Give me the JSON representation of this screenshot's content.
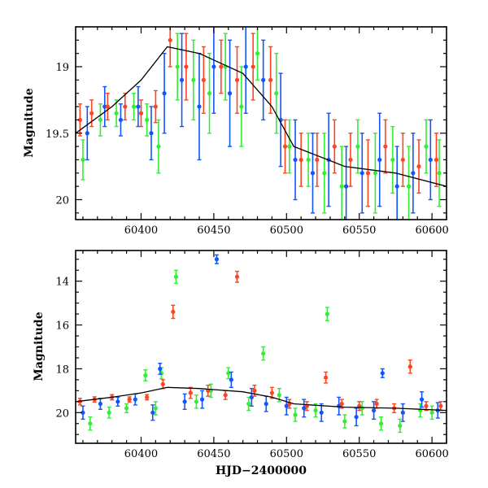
{
  "chart_data": [
    {
      "type": "scatter",
      "panel": "top",
      "title": "",
      "xlabel": "",
      "ylabel": "Magnitude",
      "xlim": [
        60355,
        60610
      ],
      "ylim": [
        20.15,
        18.7
      ],
      "y_inverted": true,
      "xticks": [
        60400,
        60450,
        60500,
        60550,
        60600
      ],
      "xtick_labels": [
        "60400",
        "60450",
        "60500",
        "60550",
        "60600"
      ],
      "yticks": [
        19,
        19.5,
        20
      ],
      "ytick_labels": [
        "19",
        "19.5",
        "20"
      ],
      "grid": false,
      "legend": "none",
      "series": [
        {
          "color": "#33ee33",
          "marker": "point-with-errorbar",
          "x": [
            60360,
            60372,
            60383,
            60395,
            60404,
            60412,
            60425,
            60436,
            60447,
            60458,
            60469,
            60480,
            60493,
            60502,
            60515,
            60526,
            60538,
            60549,
            60561,
            60573,
            60584,
            60596,
            60605
          ],
          "y": [
            19.7,
            19.4,
            19.35,
            19.3,
            19.4,
            19.6,
            19.0,
            19.1,
            19.2,
            19.0,
            19.3,
            18.9,
            19.2,
            19.6,
            19.7,
            19.8,
            19.9,
            19.6,
            19.8,
            19.7,
            19.9,
            19.6,
            19.8
          ],
          "err": [
            0.15,
            0.12,
            0.1,
            0.1,
            0.12,
            0.2,
            0.25,
            0.3,
            0.3,
            0.25,
            0.3,
            0.2,
            0.3,
            0.2,
            0.2,
            0.3,
            0.3,
            0.2,
            0.3,
            0.25,
            0.3,
            0.2,
            0.25
          ]
        },
        {
          "color": "#1155ff",
          "marker": "point-with-errorbar",
          "x": [
            60363,
            60375,
            60386,
            60398,
            60407,
            60416,
            60428,
            60440,
            60450,
            60461,
            60472,
            60484,
            60496,
            60506,
            60518,
            60529,
            60541,
            60552,
            60564,
            60576,
            60587,
            60599
          ],
          "y": [
            19.5,
            19.3,
            19.4,
            19.3,
            19.5,
            19.2,
            19.1,
            19.3,
            19.0,
            19.2,
            19.0,
            19.1,
            19.4,
            19.7,
            19.8,
            19.7,
            19.9,
            19.8,
            19.7,
            19.9,
            19.8,
            19.7
          ],
          "err": [
            0.2,
            0.15,
            0.12,
            0.15,
            0.2,
            0.3,
            0.35,
            0.4,
            0.35,
            0.4,
            0.35,
            0.3,
            0.35,
            0.3,
            0.3,
            0.35,
            0.3,
            0.3,
            0.35,
            0.3,
            0.3,
            0.3
          ]
        },
        {
          "color": "#ff4422",
          "marker": "point-with-errorbar",
          "x": [
            60358,
            60366,
            60377,
            60389,
            60400,
            60410,
            60420,
            60431,
            60443,
            60455,
            60466,
            60477,
            60489,
            60499,
            60510,
            60521,
            60533,
            60544,
            60556,
            60568,
            60580,
            60591,
            60603
          ],
          "y": [
            19.4,
            19.35,
            19.3,
            19.3,
            19.35,
            19.3,
            18.8,
            19.0,
            19.1,
            19.0,
            19.1,
            19.0,
            19.1,
            19.6,
            19.7,
            19.7,
            19.6,
            19.7,
            19.8,
            19.6,
            19.7,
            19.75,
            19.7
          ],
          "err": [
            0.12,
            0.1,
            0.1,
            0.1,
            0.1,
            0.12,
            0.2,
            0.25,
            0.25,
            0.2,
            0.25,
            0.25,
            0.25,
            0.2,
            0.2,
            0.2,
            0.2,
            0.2,
            0.25,
            0.2,
            0.2,
            0.2,
            0.2
          ]
        }
      ],
      "model_curve": {
        "color": "#000000",
        "x": [
          60355,
          60380,
          60400,
          60418,
          60440,
          60470,
          60490,
          60505,
          60540,
          60575,
          60610
        ],
        "y": [
          19.5,
          19.3,
          19.1,
          18.85,
          18.9,
          19.05,
          19.3,
          19.6,
          19.75,
          19.8,
          19.9
        ]
      }
    },
    {
      "type": "scatter",
      "panel": "bottom",
      "title": "",
      "xlabel": "HJD−2400000",
      "ylabel": "Magnitude",
      "xlim": [
        60355,
        60610
      ],
      "ylim": [
        21.4,
        12.6
      ],
      "y_inverted": true,
      "xticks": [
        60400,
        60450,
        60500,
        60550,
        60600
      ],
      "xtick_labels": [
        "60400",
        "60450",
        "60500",
        "60550",
        "60600"
      ],
      "yticks": [
        14,
        16,
        18,
        20
      ],
      "ytick_labels": [
        "14",
        "16",
        "18",
        "20"
      ],
      "grid": false,
      "legend": "none",
      "series": [
        {
          "color": "#33ee33",
          "marker": "point-with-errorbar",
          "x": [
            60365,
            60378,
            60390,
            60403,
            60410,
            60414,
            60424,
            60438,
            60448,
            60460,
            60474,
            60484,
            60495,
            60506,
            60520,
            60528,
            60540,
            60552,
            60565,
            60578,
            60592,
            60600
          ],
          "y": [
            20.5,
            20.0,
            19.8,
            18.3,
            19.8,
            18.2,
            13.8,
            19.5,
            19.0,
            18.2,
            19.6,
            17.3,
            19.2,
            20.1,
            19.9,
            15.5,
            20.4,
            19.8,
            20.5,
            20.6,
            19.9,
            20.0
          ],
          "err": [
            0.3,
            0.25,
            0.2,
            0.25,
            0.3,
            0.25,
            0.3,
            0.3,
            0.3,
            0.25,
            0.3,
            0.3,
            0.3,
            0.3,
            0.3,
            0.3,
            0.3,
            0.3,
            0.3,
            0.3,
            0.3,
            0.3
          ]
        },
        {
          "color": "#1155ff",
          "marker": "point-with-errorbar",
          "x": [
            60360,
            60372,
            60384,
            60396,
            60408,
            60413,
            60430,
            60442,
            60452,
            60462,
            60476,
            60486,
            60500,
            60512,
            60524,
            60536,
            60548,
            60560,
            60566,
            60580,
            60593,
            60604
          ],
          "y": [
            20.0,
            19.6,
            19.5,
            19.4,
            20.0,
            18.0,
            19.5,
            19.4,
            13.0,
            18.5,
            19.3,
            19.6,
            19.7,
            19.8,
            20.0,
            19.7,
            20.2,
            19.9,
            18.2,
            20.0,
            19.4,
            19.9
          ],
          "err": [
            0.3,
            0.25,
            0.2,
            0.25,
            0.35,
            0.25,
            0.35,
            0.4,
            0.2,
            0.35,
            0.4,
            0.35,
            0.4,
            0.4,
            0.4,
            0.4,
            0.4,
            0.4,
            0.2,
            0.4,
            0.35,
            0.35
          ]
        },
        {
          "color": "#ff4422",
          "marker": "point-with-errorbar",
          "x": [
            60358,
            60368,
            60380,
            60392,
            60404,
            60415,
            60422,
            60434,
            60446,
            60458,
            60466,
            60478,
            60490,
            60502,
            60514,
            60527,
            60538,
            60550,
            60562,
            60574,
            60585,
            60596,
            60606
          ],
          "y": [
            19.5,
            19.4,
            19.3,
            19.4,
            19.3,
            18.7,
            15.4,
            19.1,
            19.0,
            19.2,
            13.8,
            19.0,
            19.1,
            19.6,
            19.7,
            18.4,
            19.6,
            19.7,
            19.6,
            19.8,
            17.9,
            19.7,
            19.7
          ],
          "err": [
            0.15,
            0.12,
            0.12,
            0.12,
            0.12,
            0.2,
            0.3,
            0.25,
            0.25,
            0.2,
            0.25,
            0.25,
            0.25,
            0.2,
            0.2,
            0.25,
            0.2,
            0.2,
            0.2,
            0.2,
            0.3,
            0.2,
            0.2
          ]
        }
      ],
      "model_curve": {
        "color": "#000000",
        "x": [
          60355,
          60380,
          60400,
          60418,
          60440,
          60470,
          60490,
          60505,
          60540,
          60575,
          60610
        ],
        "y": [
          19.5,
          19.3,
          19.1,
          18.85,
          18.9,
          19.05,
          19.3,
          19.6,
          19.75,
          19.8,
          19.9
        ]
      }
    }
  ]
}
